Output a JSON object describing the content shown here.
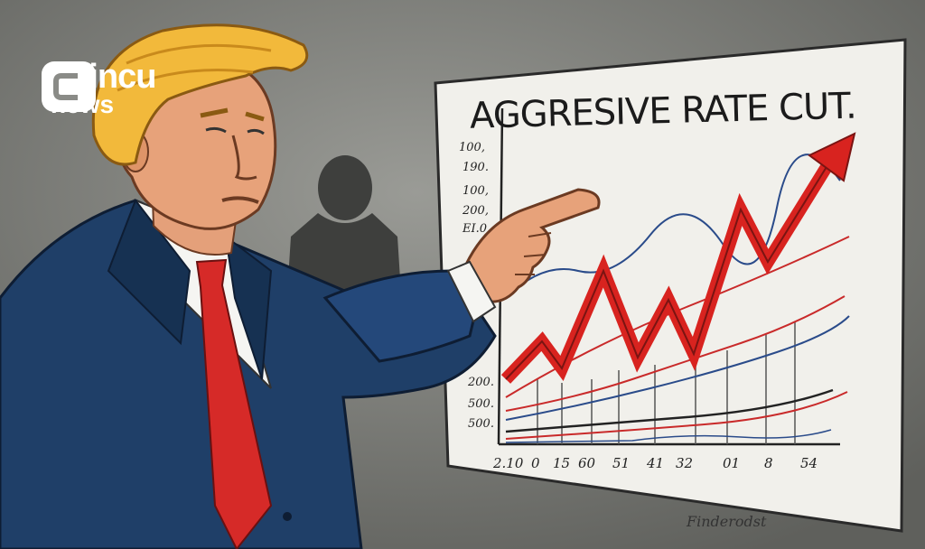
{
  "logo": {
    "name": "coincu",
    "sub": "news"
  },
  "chart": {
    "title": "AGGRESIVE RATE CUT.",
    "y_ticks_top": [
      "100,",
      "190.",
      "100,",
      "200,",
      "EI.0"
    ],
    "y_ticks_bottom": [
      "200.",
      "500.",
      "500."
    ],
    "x_ticks": [
      "2.10",
      "0",
      "15",
      "60",
      "51",
      "41",
      "32",
      "01",
      "8",
      "54"
    ],
    "signature": "Finderodst"
  },
  "colors": {
    "background": "#7d7e7a",
    "suit": "#1f3f68",
    "tie": "#d62a28",
    "hair": "#f2b93b",
    "arrow": "#d8231f"
  }
}
